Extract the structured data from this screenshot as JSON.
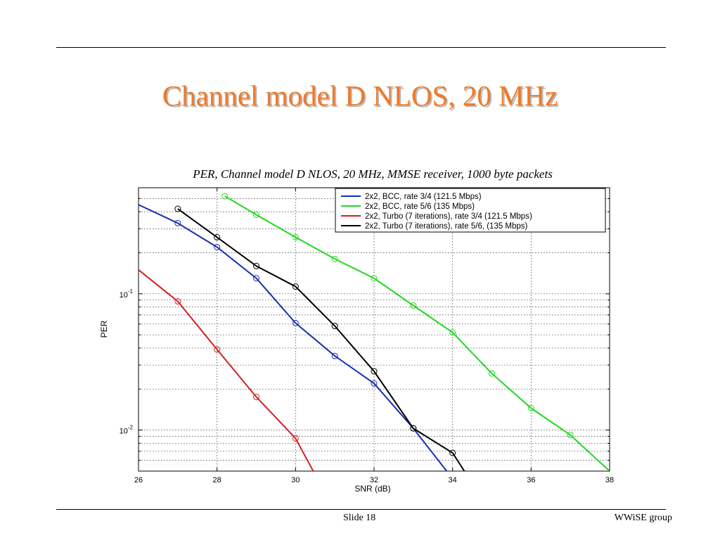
{
  "slide": {
    "title": "Channel model D NLOS, 20 MHz",
    "number_label": "Slide 18",
    "footer": "WWiSE group"
  },
  "colors": {
    "title": "#f07a2a",
    "bcc_34": "#1a2fb0",
    "bcc_56": "#22d822",
    "turbo_34": "#d42020",
    "turbo_56": "#000000"
  },
  "chart_data": {
    "type": "line",
    "title": "PER, Channel model D NLOS, 20 MHz, MMSE receiver, 1000 byte packets",
    "xlabel": "SNR (dB)",
    "ylabel": "PER",
    "xlim": [
      26,
      38
    ],
    "ylim": [
      0.005,
      0.6
    ],
    "y_scale": "log",
    "grid": true,
    "legend_position": "top-right",
    "x_ticks": [
      "26",
      "28",
      "30",
      "32",
      "34",
      "36",
      "38"
    ],
    "y_ticks": [
      {
        "value": 0.1,
        "base": "10",
        "exp": "-1"
      },
      {
        "value": 0.01,
        "base": "10",
        "exp": "-2"
      }
    ],
    "series": [
      {
        "name": "2x2, BCC, rate 3/4 (121.5 Mbps)",
        "color": "#1a2fb0",
        "x": [
          26,
          27,
          28,
          29,
          30,
          31,
          32,
          33,
          33.85
        ],
        "y": [
          0.45,
          0.33,
          0.22,
          0.13,
          0.061,
          0.035,
          0.022,
          0.0103,
          0.005
        ]
      },
      {
        "name": "2x2, BCC, rate 5/6 (135 Mbps)",
        "color": "#22d822",
        "x": [
          28.2,
          29,
          30,
          31,
          32,
          33,
          34,
          35,
          36,
          37,
          38
        ],
        "y": [
          0.52,
          0.38,
          0.26,
          0.18,
          0.13,
          0.082,
          0.052,
          0.026,
          0.0145,
          0.0092,
          0.005
        ]
      },
      {
        "name": "2x2, Turbo (7 iterations), rate 3/4 (121.5 Mbps)",
        "color": "#d42020",
        "x": [
          26,
          27,
          28,
          29,
          30,
          30.45
        ],
        "y": [
          0.15,
          0.088,
          0.039,
          0.0175,
          0.0087,
          0.005
        ]
      },
      {
        "name": "2x2, Turbo (7 iterations), rate 5/6, (135 Mbps)",
        "color": "#000000",
        "x": [
          27,
          28,
          29,
          30,
          31,
          32,
          33,
          34,
          34.3
        ],
        "y": [
          0.42,
          0.26,
          0.16,
          0.113,
          0.058,
          0.027,
          0.0103,
          0.0068,
          0.005
        ]
      }
    ]
  }
}
